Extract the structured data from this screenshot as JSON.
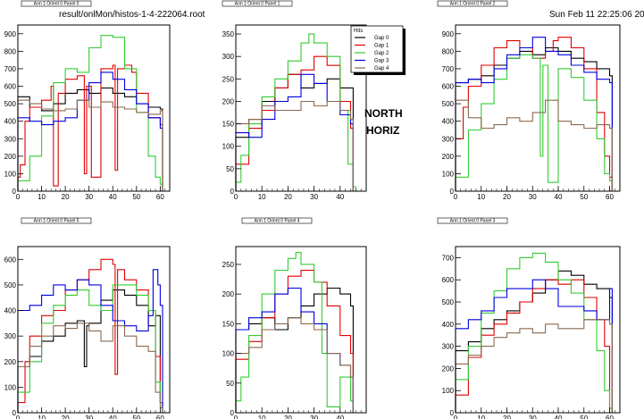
{
  "header": {
    "file": "result/onlMon/histos-1-4-222064.root",
    "date": "Sun Feb 11 22:25:06 2007"
  },
  "label": {
    "line1": "NORTH",
    "line2": "HORIZ"
  },
  "legend": {
    "title": "Hits",
    "entries": [
      "Gap 0",
      "Gap 1",
      "Gap 2",
      "Gap 3",
      "Gap 4"
    ]
  },
  "colors": {
    "Gap 0": "#000000",
    "Gap 1": "#e00000",
    "Gap 2": "#33cc33",
    "Gap 3": "#0000e0",
    "Gap 4": "#8b6a50"
  },
  "chart_data": [
    {
      "type": "line",
      "step": true,
      "title": "Arm 1 Orient 0 Panel 0",
      "xlim": [
        0,
        64
      ],
      "ylim": [
        0,
        950
      ],
      "xticks": [
        0,
        10,
        20,
        30,
        40,
        50,
        60
      ],
      "yticks": [
        0,
        100,
        200,
        300,
        400,
        500,
        600,
        700,
        800,
        900
      ],
      "series": [
        {
          "name": "Gap 0",
          "x": [
            0,
            5,
            10,
            15,
            20,
            25,
            30,
            35,
            40,
            45,
            50,
            55,
            60
          ],
          "y": [
            540,
            480,
            460,
            500,
            560,
            580,
            560,
            590,
            560,
            540,
            500,
            480,
            470
          ]
        },
        {
          "name": "Gap 1",
          "x": [
            0,
            1,
            3,
            5,
            10,
            14,
            15,
            17,
            20,
            25,
            28,
            29,
            31,
            35,
            40,
            41,
            42,
            45,
            48,
            50,
            55,
            60
          ],
          "y": [
            80,
            150,
            400,
            480,
            520,
            600,
            30,
            560,
            640,
            660,
            100,
            600,
            80,
            700,
            720,
            120,
            700,
            720,
            680,
            560,
            420,
            380
          ]
        },
        {
          "name": "Gap 2",
          "x": [
            0,
            5,
            10,
            15,
            20,
            25,
            30,
            35,
            40,
            45,
            50,
            55,
            58,
            60
          ],
          "y": [
            60,
            200,
            430,
            620,
            700,
            680,
            820,
            890,
            880,
            700,
            450,
            200,
            80,
            40
          ]
        },
        {
          "name": "Gap 3",
          "x": [
            0,
            5,
            10,
            15,
            20,
            25,
            30,
            35,
            40,
            45,
            50,
            55,
            60
          ],
          "y": [
            420,
            400,
            380,
            400,
            420,
            520,
            620,
            680,
            640,
            580,
            500,
            420,
            360
          ]
        },
        {
          "name": "Gap 4",
          "x": [
            0,
            5,
            10,
            15,
            20,
            25,
            30,
            35,
            40,
            45,
            50,
            55,
            60
          ],
          "y": [
            520,
            500,
            470,
            460,
            470,
            520,
            480,
            510,
            480,
            470,
            450,
            440,
            460
          ]
        }
      ]
    },
    {
      "type": "line",
      "step": true,
      "title": "Arm 1 Orient 0 Panel 1",
      "xlim": [
        0,
        50
      ],
      "ylim": [
        0,
        370
      ],
      "xticks": [
        0,
        10,
        20,
        30,
        40
      ],
      "yticks": [
        0,
        50,
        100,
        150,
        200,
        250,
        300,
        350
      ],
      "series": [
        {
          "name": "Gap 0",
          "x": [
            0,
            5,
            10,
            15,
            20,
            25,
            30,
            35,
            40,
            44
          ],
          "y": [
            120,
            160,
            200,
            230,
            260,
            230,
            240,
            250,
            230,
            230
          ]
        },
        {
          "name": "Gap 1",
          "x": [
            0,
            5,
            10,
            15,
            20,
            25,
            30,
            35,
            40,
            44
          ],
          "y": [
            60,
            140,
            180,
            230,
            260,
            270,
            300,
            280,
            200,
            140
          ]
        },
        {
          "name": "Gap 2",
          "x": [
            0,
            2,
            5,
            10,
            15,
            20,
            25,
            28,
            30,
            35,
            40,
            43,
            45
          ],
          "y": [
            20,
            80,
            150,
            210,
            250,
            290,
            330,
            350,
            330,
            300,
            180,
            60,
            10
          ]
        },
        {
          "name": "Gap 3",
          "x": [
            0,
            5,
            10,
            15,
            20,
            25,
            30,
            35,
            40,
            44
          ],
          "y": [
            130,
            120,
            160,
            200,
            210,
            260,
            240,
            200,
            170,
            150
          ]
        },
        {
          "name": "Gap 4",
          "x": [
            0,
            5,
            10,
            15,
            20,
            25,
            30,
            35,
            40,
            44
          ],
          "y": [
            150,
            160,
            190,
            180,
            180,
            200,
            190,
            200,
            180,
            160
          ]
        }
      ]
    },
    {
      "type": "line",
      "step": true,
      "title": "Arm 1 Orient 0 Panel 2",
      "xlim": [
        0,
        64
      ],
      "ylim": [
        0,
        950
      ],
      "xticks": [
        0,
        10,
        20,
        30,
        40,
        50,
        60
      ],
      "yticks": [
        0,
        100,
        200,
        300,
        400,
        500,
        600,
        700,
        800,
        900
      ],
      "series": [
        {
          "name": "Gap 0",
          "x": [
            0,
            5,
            10,
            15,
            20,
            25,
            30,
            35,
            40,
            45,
            50,
            55,
            60
          ],
          "y": [
            620,
            640,
            660,
            720,
            760,
            800,
            780,
            820,
            800,
            760,
            740,
            700,
            660
          ]
        },
        {
          "name": "Gap 1",
          "x": [
            0,
            3,
            5,
            10,
            15,
            20,
            25,
            30,
            35,
            38,
            40,
            45,
            50,
            55,
            58,
            60
          ],
          "y": [
            300,
            480,
            600,
            720,
            820,
            860,
            820,
            760,
            800,
            860,
            880,
            820,
            700,
            450,
            200,
            80
          ]
        },
        {
          "name": "Gap 2",
          "x": [
            0,
            5,
            10,
            15,
            20,
            25,
            30,
            33,
            34,
            36,
            40,
            45,
            50,
            55,
            58,
            60
          ],
          "y": [
            80,
            350,
            500,
            640,
            760,
            780,
            760,
            200,
            720,
            50,
            700,
            650,
            520,
            300,
            100,
            60
          ]
        },
        {
          "name": "Gap 3",
          "x": [
            0,
            5,
            10,
            15,
            20,
            25,
            30,
            35,
            40,
            45,
            50,
            55,
            60
          ],
          "y": [
            620,
            640,
            620,
            700,
            780,
            820,
            880,
            800,
            780,
            720,
            680,
            640,
            620
          ]
        },
        {
          "name": "Gap 4",
          "x": [
            0,
            5,
            10,
            15,
            20,
            25,
            30,
            35,
            40,
            45,
            50,
            55,
            60
          ],
          "y": [
            520,
            420,
            360,
            380,
            420,
            400,
            450,
            520,
            400,
            380,
            360,
            380,
            360
          ]
        }
      ]
    },
    {
      "type": "line",
      "step": true,
      "title": "Arm 1 Orient 0 Panel 5",
      "xlim": [
        0,
        64
      ],
      "ylim": [
        0,
        650
      ],
      "xticks": [
        0,
        10,
        20,
        30,
        40,
        50,
        60
      ],
      "yticks": [
        0,
        100,
        200,
        300,
        400,
        500,
        600
      ],
      "series": [
        {
          "name": "Gap 0",
          "x": [
            0,
            5,
            10,
            15,
            20,
            25,
            28,
            29,
            30,
            35,
            40,
            45,
            50,
            55,
            58,
            60
          ],
          "y": [
            180,
            220,
            280,
            300,
            350,
            360,
            180,
            340,
            350,
            440,
            480,
            460,
            420,
            340,
            380,
            40
          ]
        },
        {
          "name": "Gap 1",
          "x": [
            0,
            3,
            5,
            10,
            15,
            20,
            25,
            30,
            35,
            40,
            41,
            42,
            45,
            50,
            55,
            58,
            60
          ],
          "y": [
            40,
            200,
            300,
            380,
            400,
            480,
            520,
            560,
            600,
            580,
            150,
            560,
            520,
            480,
            400,
            220,
            40
          ]
        },
        {
          "name": "Gap 2",
          "x": [
            0,
            5,
            10,
            15,
            20,
            25,
            30,
            35,
            40,
            45,
            50,
            55,
            58,
            60
          ],
          "y": [
            80,
            200,
            350,
            420,
            460,
            480,
            420,
            400,
            500,
            500,
            460,
            400,
            120,
            40
          ]
        },
        {
          "name": "Gap 3",
          "x": [
            0,
            5,
            10,
            15,
            20,
            25,
            30,
            35,
            40,
            45,
            50,
            55,
            57,
            59,
            60
          ],
          "y": [
            400,
            420,
            460,
            500,
            480,
            520,
            500,
            420,
            360,
            340,
            320,
            380,
            560,
            500,
            420
          ]
        },
        {
          "name": "Gap 4",
          "x": [
            0,
            5,
            10,
            15,
            20,
            25,
            30,
            35,
            40,
            45,
            50,
            55,
            58,
            60
          ],
          "y": [
            180,
            260,
            300,
            340,
            330,
            350,
            320,
            280,
            340,
            300,
            260,
            240,
            80,
            20
          ]
        }
      ]
    },
    {
      "type": "line",
      "step": true,
      "title": "Arm 1 Orient 0 Panel 4",
      "xlim": [
        0,
        50
      ],
      "ylim": [
        0,
        280
      ],
      "xticks": [
        0,
        10,
        20,
        30,
        40
      ],
      "yticks": [
        0,
        50,
        100,
        150,
        200,
        250
      ],
      "series": [
        {
          "name": "Gap 0",
          "x": [
            0,
            5,
            10,
            15,
            20,
            25,
            30,
            35,
            40,
            44
          ],
          "y": [
            140,
            150,
            160,
            140,
            160,
            180,
            200,
            210,
            200,
            180
          ]
        },
        {
          "name": "Gap 1",
          "x": [
            0,
            5,
            10,
            15,
            20,
            25,
            30,
            35,
            40,
            44
          ],
          "y": [
            90,
            120,
            160,
            200,
            230,
            240,
            220,
            180,
            130,
            100
          ]
        },
        {
          "name": "Gap 2",
          "x": [
            0,
            2,
            5,
            10,
            15,
            20,
            23,
            25,
            30,
            33,
            35,
            40,
            44
          ],
          "y": [
            20,
            60,
            130,
            200,
            240,
            260,
            270,
            250,
            220,
            100,
            10,
            60,
            20
          ]
        },
        {
          "name": "Gap 3",
          "x": [
            0,
            5,
            10,
            15,
            20,
            25,
            30,
            35,
            40,
            44
          ],
          "y": [
            140,
            160,
            170,
            200,
            210,
            170,
            150,
            100,
            80,
            60
          ]
        },
        {
          "name": "Gap 4",
          "x": [
            0,
            5,
            10,
            15,
            20,
            25,
            30,
            35,
            40,
            44
          ],
          "y": [
            100,
            110,
            140,
            150,
            160,
            150,
            140,
            100,
            80,
            60
          ]
        }
      ]
    },
    {
      "type": "line",
      "step": true,
      "title": "Arm 1 Orient 0 Panel 3",
      "xlim": [
        0,
        64
      ],
      "ylim": [
        0,
        750
      ],
      "xticks": [
        0,
        10,
        20,
        30,
        40,
        50,
        60
      ],
      "yticks": [
        0,
        100,
        200,
        300,
        400,
        500,
        600,
        700
      ],
      "series": [
        {
          "name": "Gap 0",
          "x": [
            0,
            5,
            10,
            15,
            20,
            25,
            30,
            35,
            40,
            45,
            50,
            55,
            60
          ],
          "y": [
            280,
            320,
            380,
            420,
            460,
            500,
            540,
            600,
            640,
            620,
            580,
            560,
            520
          ]
        },
        {
          "name": "Gap 1",
          "x": [
            0,
            5,
            10,
            15,
            20,
            25,
            30,
            35,
            40,
            45,
            50,
            55,
            58,
            60
          ],
          "y": [
            80,
            250,
            350,
            400,
            450,
            500,
            560,
            600,
            580,
            600,
            520,
            420,
            300,
            20
          ]
        },
        {
          "name": "Gap 2",
          "x": [
            0,
            5,
            10,
            15,
            20,
            25,
            30,
            35,
            40,
            45,
            50,
            55,
            58,
            60
          ],
          "y": [
            150,
            300,
            450,
            550,
            650,
            700,
            720,
            680,
            600,
            540,
            420,
            280,
            100,
            20
          ]
        },
        {
          "name": "Gap 3",
          "x": [
            0,
            5,
            10,
            15,
            20,
            25,
            30,
            35,
            40,
            45,
            50,
            55,
            60
          ],
          "y": [
            380,
            420,
            460,
            520,
            560,
            560,
            600,
            560,
            480,
            480,
            460,
            420,
            560
          ]
        },
        {
          "name": "Gap 4",
          "x": [
            0,
            5,
            10,
            15,
            20,
            25,
            30,
            35,
            40,
            45,
            50,
            55,
            60
          ],
          "y": [
            220,
            260,
            300,
            340,
            360,
            380,
            360,
            400,
            380,
            380,
            420,
            420,
            400
          ]
        }
      ]
    }
  ]
}
